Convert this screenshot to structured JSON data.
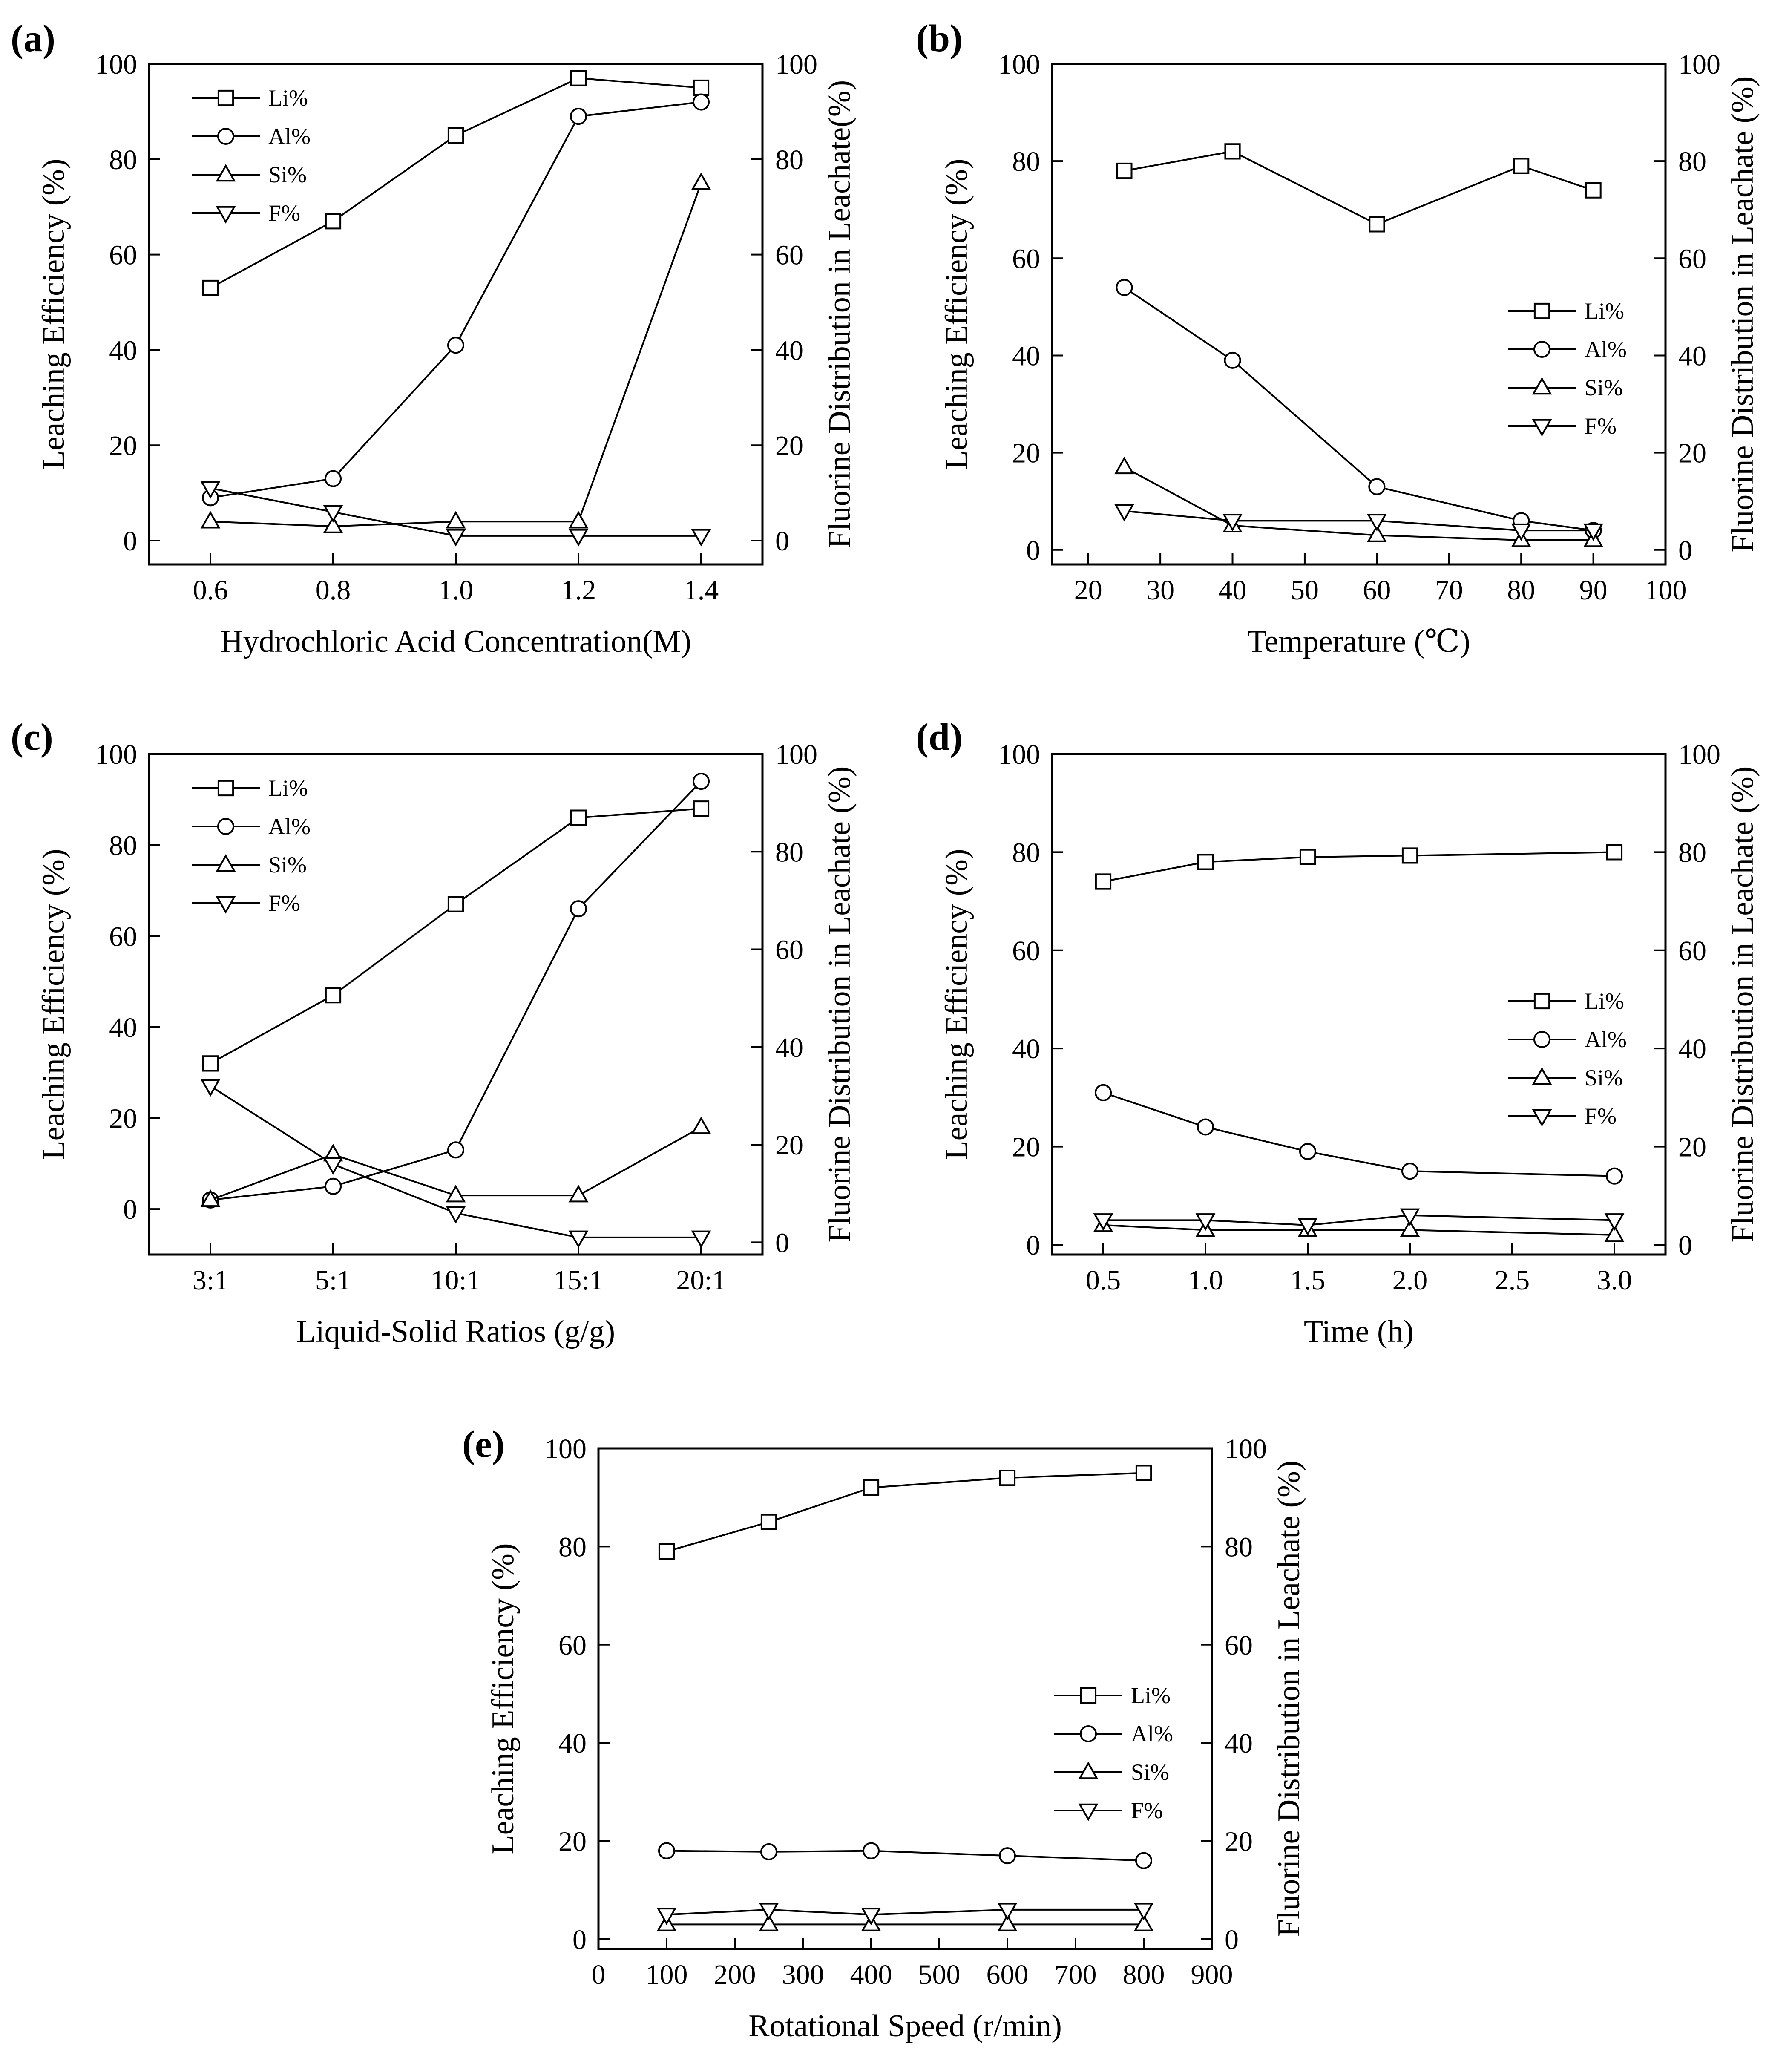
{
  "figure": {
    "chart_data": [
      {
        "id": "a",
        "panel_label": "(a)",
        "type": "line",
        "xlabel": "Hydrochloric Acid Concentration(M)",
        "ylabel": "Leaching Efficiency (%)",
        "y2label": "Fluorine Distribution in Leachate(%)",
        "xlim": [
          0.5,
          1.5
        ],
        "ylim": [
          -5,
          100
        ],
        "x_ticks": [
          0.6,
          0.8,
          1.0,
          1.2,
          1.4
        ],
        "x_tick_labels": [
          "0.6",
          "0.8",
          "1.0",
          "1.2",
          "1.4"
        ],
        "y_ticks": [
          0,
          20,
          40,
          60,
          80,
          100
        ],
        "y_tick_labels": [
          "0",
          "20",
          "40",
          "60",
          "80",
          "100"
        ],
        "y2lim": [
          -5,
          100
        ],
        "y2_ticks": [
          0,
          20,
          40,
          60,
          80,
          100
        ],
        "y2_tick_labels": [
          "0",
          "20",
          "40",
          "60",
          "80",
          "100"
        ],
        "legend_position": "top-left",
        "x": [
          0.6,
          0.8,
          1.0,
          1.2,
          1.4
        ],
        "series": [
          {
            "name": "Li%",
            "marker": "square",
            "axis": "left",
            "values": [
              53,
              67,
              85,
              97,
              95
            ]
          },
          {
            "name": "Al%",
            "marker": "circle",
            "axis": "left",
            "values": [
              9,
              13,
              41,
              89,
              92
            ]
          },
          {
            "name": "Si%",
            "marker": "triangle-up",
            "axis": "left",
            "values": [
              4,
              3,
              4,
              4,
              75
            ]
          },
          {
            "name": "F%",
            "marker": "triangle-down",
            "axis": "right",
            "values": [
              11,
              6,
              1,
              1,
              1
            ]
          }
        ]
      },
      {
        "id": "b",
        "panel_label": "(b)",
        "type": "line",
        "xlabel": "Temperature (℃)",
        "ylabel": "Leaching Efficiency (%)",
        "y2label": "Fluorine Distribution in Leachate (%)",
        "xlim": [
          15,
          100
        ],
        "ylim": [
          -3,
          100
        ],
        "x_ticks": [
          20,
          30,
          40,
          50,
          60,
          70,
          80,
          90,
          100
        ],
        "x_tick_labels": [
          "20",
          "30",
          "40",
          "50",
          "60",
          "70",
          "80",
          "90",
          "100"
        ],
        "y_ticks": [
          0,
          20,
          40,
          60,
          80,
          100
        ],
        "y_tick_labels": [
          "0",
          "20",
          "40",
          "60",
          "80",
          "100"
        ],
        "y2lim": [
          -3,
          100
        ],
        "y2_ticks": [
          0,
          20,
          40,
          60,
          80,
          100
        ],
        "y2_tick_labels": [
          "0",
          "20",
          "40",
          "60",
          "80",
          "100"
        ],
        "legend_position": "middle-right",
        "x": [
          25,
          40,
          60,
          80,
          90
        ],
        "series": [
          {
            "name": "Li%",
            "marker": "square",
            "axis": "left",
            "values": [
              78,
              82,
              67,
              79,
              74
            ]
          },
          {
            "name": "Al%",
            "marker": "circle",
            "axis": "left",
            "values": [
              54,
              39,
              13,
              6,
              4
            ]
          },
          {
            "name": "Si%",
            "marker": "triangle-up",
            "axis": "left",
            "values": [
              17,
              5,
              3,
              2,
              2
            ]
          },
          {
            "name": "F%",
            "marker": "triangle-down",
            "axis": "right",
            "values": [
              8,
              6,
              6,
              4,
              4
            ]
          }
        ]
      },
      {
        "id": "c",
        "panel_label": "(c)",
        "type": "line",
        "xlabel": "Liquid-Solid Ratios (g/g)",
        "ylabel": "Leaching Efficiency (%)",
        "y2label": "Fluorine Distribution in Leachate (%)",
        "xlim": [
          -0.5,
          4.5
        ],
        "ylim": [
          -10,
          100
        ],
        "x_ticks": [
          0,
          1,
          2,
          3,
          4
        ],
        "x_tick_labels": [
          "3:1",
          "5:1",
          "10:1",
          "15:1",
          "20:1"
        ],
        "y_ticks": [
          0,
          20,
          40,
          60,
          80,
          100
        ],
        "y_tick_labels": [
          "0",
          "20",
          "40",
          "60",
          "80",
          "100"
        ],
        "y2lim": [
          -2.5,
          100
        ],
        "y2_ticks": [
          0,
          20,
          40,
          60,
          80,
          100
        ],
        "y2_tick_labels": [
          "0",
          "20",
          "40",
          "60",
          "80",
          "100"
        ],
        "legend_position": "top-left",
        "x": [
          0,
          1,
          2,
          3,
          4
        ],
        "series": [
          {
            "name": "Li%",
            "marker": "square",
            "axis": "left",
            "values": [
              32,
              47,
              67,
              86,
              88
            ]
          },
          {
            "name": "Al%",
            "marker": "circle",
            "axis": "left",
            "values": [
              2,
              5,
              13,
              66,
              94
            ]
          },
          {
            "name": "Si%",
            "marker": "triangle-up",
            "axis": "left",
            "values": [
              2,
              12,
              3,
              3,
              18
            ]
          },
          {
            "name": "F%",
            "marker": "triangle-down",
            "axis": "right",
            "values": [
              32,
              16,
              6,
              1,
              1
            ]
          }
        ]
      },
      {
        "id": "d",
        "panel_label": "(d)",
        "type": "line",
        "xlabel": "Time (h)",
        "ylabel": "Leaching Efficiency (%)",
        "y2label": "Fluorine Distribution in Leachate (%)",
        "xlim": [
          0.25,
          3.25
        ],
        "ylim": [
          -2,
          100
        ],
        "x_ticks": [
          0.5,
          1.0,
          1.5,
          2.0,
          2.5,
          3.0
        ],
        "x_tick_labels": [
          "0.5",
          "1.0",
          "1.5",
          "2.0",
          "2.5",
          "3.0"
        ],
        "y_ticks": [
          0,
          20,
          40,
          60,
          80,
          100
        ],
        "y_tick_labels": [
          "0",
          "20",
          "40",
          "60",
          "80",
          "100"
        ],
        "y2lim": [
          -2,
          100
        ],
        "y2_ticks": [
          0,
          20,
          40,
          60,
          80,
          100
        ],
        "y2_tick_labels": [
          "0",
          "20",
          "40",
          "60",
          "80",
          "100"
        ],
        "legend_position": "middle-right",
        "x": [
          0.5,
          1.0,
          1.5,
          2.0,
          3.0
        ],
        "series": [
          {
            "name": "Li%",
            "marker": "square",
            "axis": "left",
            "values": [
              74,
              78,
              79,
              79.3,
              80
            ]
          },
          {
            "name": "Al%",
            "marker": "circle",
            "axis": "left",
            "values": [
              31,
              24,
              19,
              15,
              14
            ]
          },
          {
            "name": "Si%",
            "marker": "triangle-up",
            "axis": "left",
            "values": [
              4,
              3,
              3,
              3,
              2
            ]
          },
          {
            "name": "F%",
            "marker": "triangle-down",
            "axis": "right",
            "values": [
              5,
              5,
              4,
              6,
              5
            ]
          }
        ]
      },
      {
        "id": "e",
        "panel_label": "(e)",
        "type": "line",
        "xlabel": "Rotational Speed (r/min)",
        "ylabel": "Leaching Efficiency (%)",
        "y2label": "Fluorine Distribution in Leachate (%)",
        "xlim": [
          0,
          900
        ],
        "ylim": [
          -2,
          100
        ],
        "x_ticks": [
          0,
          100,
          200,
          300,
          400,
          500,
          600,
          700,
          800,
          900
        ],
        "x_tick_labels": [
          "0",
          "100",
          "200",
          "300",
          "400",
          "500",
          "600",
          "700",
          "800",
          "900"
        ],
        "y_ticks": [
          0,
          20,
          40,
          60,
          80,
          100
        ],
        "y_tick_labels": [
          "0",
          "20",
          "40",
          "60",
          "80",
          "100"
        ],
        "y2lim": [
          -2,
          100
        ],
        "y2_ticks": [
          0,
          20,
          40,
          60,
          80,
          100
        ],
        "y2_tick_labels": [
          "0",
          "20",
          "40",
          "60",
          "80",
          "100"
        ],
        "legend_position": "middle-right",
        "x": [
          100,
          250,
          400,
          600,
          800
        ],
        "series": [
          {
            "name": "Li%",
            "marker": "square",
            "axis": "left",
            "values": [
              79,
              85,
              92,
              94,
              95
            ]
          },
          {
            "name": "Al%",
            "marker": "circle",
            "axis": "left",
            "values": [
              18,
              17.8,
              18,
              17,
              16
            ]
          },
          {
            "name": "Si%",
            "marker": "triangle-up",
            "axis": "left",
            "values": [
              3,
              3,
              3,
              3,
              3
            ]
          },
          {
            "name": "F%",
            "marker": "triangle-down",
            "axis": "right",
            "values": [
              5,
              6,
              5,
              6,
              6
            ]
          }
        ]
      }
    ]
  }
}
